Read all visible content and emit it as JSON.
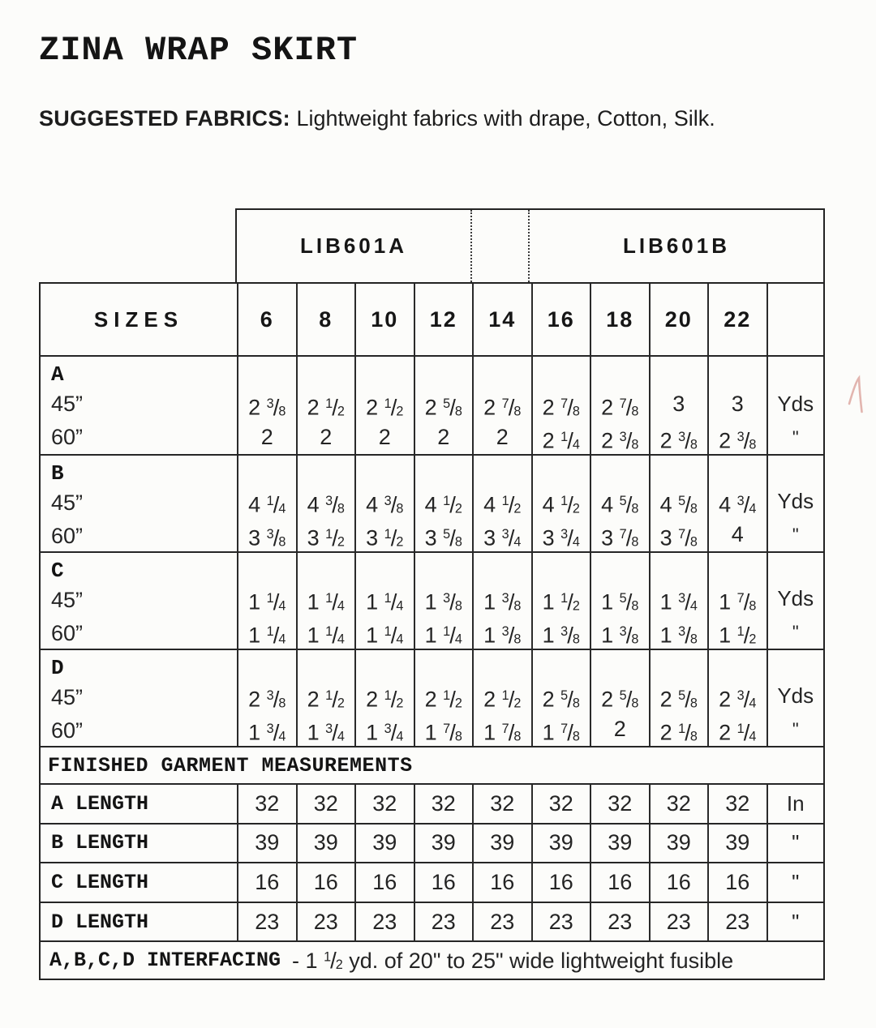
{
  "page": {
    "title": "ZINA WRAP SKIRT",
    "fabrics_label": "SUGGESTED FABRICS:",
    "fabrics_text": " Lightweight fabrics with drape, Cotton, Silk."
  },
  "table": {
    "view_a": "LIB601A",
    "view_b": "LIB601B",
    "sizes_label": "SIZES",
    "sizes": [
      "6",
      "8",
      "10",
      "12",
      "14",
      "16",
      "18",
      "20",
      "22"
    ],
    "yardage_sections": [
      {
        "label": "A",
        "rows": [
          {
            "width": "45”",
            "values": [
              "2 3/8",
              "2 1/2",
              "2 1/2",
              "2 5/8",
              "2 7/8",
              "2 7/8",
              "2 7/8",
              "3",
              "3"
            ],
            "unit": "Yds"
          },
          {
            "width": "60”",
            "values": [
              "2",
              "2",
              "2",
              "2",
              "2",
              "2 1/4",
              "2 3/8",
              "2 3/8",
              "2 3/8"
            ],
            "unit": "\""
          }
        ]
      },
      {
        "label": "B",
        "rows": [
          {
            "width": "45”",
            "values": [
              "4 1/4",
              "4 3/8",
              "4 3/8",
              "4 1/2",
              "4 1/2",
              "4 1/2",
              "4 5/8",
              "4 5/8",
              "4 3/4"
            ],
            "unit": "Yds"
          },
          {
            "width": "60”",
            "values": [
              "3 3/8",
              "3 1/2",
              "3 1/2",
              "3 5/8",
              "3 3/4",
              "3 3/4",
              "3 7/8",
              "3 7/8",
              "4"
            ],
            "unit": "\""
          }
        ]
      },
      {
        "label": "C",
        "rows": [
          {
            "width": "45”",
            "values": [
              "1 1/4",
              "1 1/4",
              "1 1/4",
              "1 3/8",
              "1 3/8",
              "1 1/2",
              "1 5/8",
              "1 3/4",
              "1 7/8"
            ],
            "unit": "Yds"
          },
          {
            "width": "60”",
            "values": [
              "1 1/4",
              "1 1/4",
              "1 1/4",
              "1 1/4",
              "1 3/8",
              "1 3/8",
              "1 3/8",
              "1 3/8",
              "1 1/2"
            ],
            "unit": "\""
          }
        ]
      },
      {
        "label": "D",
        "rows": [
          {
            "width": "45”",
            "values": [
              "2 3/8",
              "2 1/2",
              "2 1/2",
              "2 1/2",
              "2 1/2",
              "2 5/8",
              "2 5/8",
              "2 5/8",
              "2 3/4"
            ],
            "unit": "Yds"
          },
          {
            "width": "60”",
            "values": [
              "1 3/4",
              "1 3/4",
              "1 3/4",
              "1 7/8",
              "1 7/8",
              "1 7/8",
              "2",
              "2 1/8",
              "2 1/4"
            ],
            "unit": "\""
          }
        ]
      }
    ],
    "finished_header": "FINISHED GARMENT MEASUREMENTS",
    "length_rows": [
      {
        "label": "A LENGTH",
        "values": [
          "32",
          "32",
          "32",
          "32",
          "32",
          "32",
          "32",
          "32",
          "32"
        ],
        "unit": "In"
      },
      {
        "label": "B LENGTH",
        "values": [
          "39",
          "39",
          "39",
          "39",
          "39",
          "39",
          "39",
          "39",
          "39"
        ],
        "unit": "\""
      },
      {
        "label": "C LENGTH",
        "values": [
          "16",
          "16",
          "16",
          "16",
          "16",
          "16",
          "16",
          "16",
          "16"
        ],
        "unit": "\""
      },
      {
        "label": "D LENGTH",
        "values": [
          "23",
          "23",
          "23",
          "23",
          "23",
          "23",
          "23",
          "23",
          "23"
        ],
        "unit": "\""
      }
    ],
    "interfacing_label": "A,B,C,D INTERFACING",
    "interfacing_note": "-  1 1/2 yd. of 20\" to 25\" wide lightweight fusible"
  },
  "decorations": {
    "pen_mark_color": "#dba29c"
  }
}
